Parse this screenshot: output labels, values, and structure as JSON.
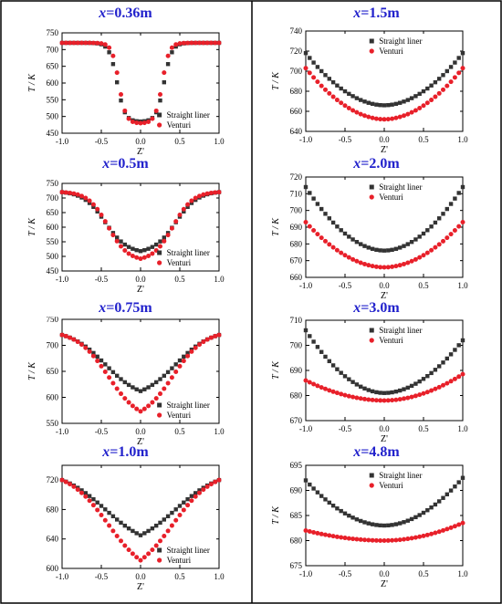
{
  "figure": {
    "border_color": "#000000",
    "title_color": "#2222cc",
    "straight_color": "#333333",
    "venturi_color": "#e8202a"
  },
  "chart_data": [
    {
      "type": "scatter",
      "title_var": "x",
      "title_value": "=0.36m",
      "xlabel": "Z'",
      "ylabel": "T / K",
      "xlim": [
        -1.0,
        1.0
      ],
      "ylim": [
        450,
        750
      ],
      "xticks": [
        "-1.0",
        "-0.5",
        "0.0",
        "0.5",
        "1.0"
      ],
      "yticks": [
        "450",
        "500",
        "550",
        "600",
        "650",
        "700",
        "750"
      ],
      "legend": [
        "Straight liner",
        "Venturi"
      ],
      "legend_position": "bottom-right",
      "profile": {
        "base": 720,
        "min_straight": 485,
        "min_venturi": 480,
        "shape": "step",
        "half_width": 0.3,
        "edge": 0.05
      }
    },
    {
      "type": "scatter",
      "title_var": "x",
      "title_value": "=0.5m",
      "xlabel": "Z'",
      "ylabel": "T / K",
      "xlim": [
        -1.0,
        1.0
      ],
      "ylim": [
        450,
        750
      ],
      "xticks": [
        "-1.0",
        "-0.5",
        "0.0",
        "0.5",
        "1.0"
      ],
      "yticks": [
        "450",
        "500",
        "550",
        "600",
        "650",
        "700",
        "750"
      ],
      "legend": [
        "Straight liner",
        "Venturi"
      ],
      "legend_position": "bottom-right",
      "profile": {
        "base": 720,
        "min_straight": 518,
        "min_venturi": 492,
        "shape": "step",
        "half_width": 0.45,
        "edge": 0.14
      }
    },
    {
      "type": "scatter",
      "title_var": "x",
      "title_value": "=0.75m",
      "xlabel": "Z'",
      "ylabel": "T / K",
      "xlim": [
        -1.0,
        1.0
      ],
      "ylim": [
        550,
        750
      ],
      "xticks": [
        "-1.0",
        "-0.5",
        "0.0",
        "0.5",
        "1.0"
      ],
      "yticks": [
        "550",
        "600",
        "650",
        "700",
        "750"
      ],
      "legend": [
        "Straight liner",
        "Venturi"
      ],
      "legend_position": "bottom-right",
      "profile": {
        "base": 720,
        "min_straight": 612,
        "min_venturi": 573,
        "shape": "step",
        "half_width": 0.45,
        "edge": 0.22
      }
    },
    {
      "type": "scatter",
      "title_var": "x",
      "title_value": "=1.0m",
      "xlabel": "Z'",
      "ylabel": "",
      "xlim": [
        -1.0,
        1.0
      ],
      "ylim": [
        600,
        740
      ],
      "xticks": [
        "-1.0",
        "-0.5",
        "0.0",
        "0.5",
        "1.0"
      ],
      "yticks": [
        "600",
        "640",
        "680",
        "720"
      ],
      "legend": [
        "Straight liner",
        "Venturi"
      ],
      "legend_position": "bottom-right",
      "profile": {
        "base": 720,
        "min_straight": 645,
        "min_venturi": 611,
        "shape": "step",
        "half_width": 0.45,
        "edge": 0.28
      }
    },
    {
      "type": "scatter",
      "title_var": "x",
      "title_value": "=1.5m",
      "xlabel": "Z'",
      "ylabel": "T / K",
      "xlim": [
        -1.0,
        1.0
      ],
      "ylim": [
        640,
        740
      ],
      "xticks": [
        "-1.0",
        "-0.5",
        "0.0",
        "0.5",
        "1.0"
      ],
      "yticks": [
        "640",
        "660",
        "680",
        "700",
        "720",
        "740"
      ],
      "legend": [
        "Straight liner",
        "Venturi"
      ],
      "legend_position": "top-right",
      "profile": {
        "base_straight": 718,
        "base_venturi": 703,
        "min_straight": 666,
        "min_venturi": 652,
        "shape": "parabola"
      }
    },
    {
      "type": "scatter",
      "title_var": "x",
      "title_value": "=2.0m",
      "xlabel": "Z'",
      "ylabel": "T / K",
      "xlim": [
        -1.0,
        1.0
      ],
      "ylim": [
        660,
        720
      ],
      "xticks": [
        "-1.0",
        "-0.5",
        "0.0",
        "0.5",
        "1.0"
      ],
      "yticks": [
        "660",
        "670",
        "680",
        "690",
        "700",
        "710",
        "720"
      ],
      "legend": [
        "Straight liner",
        "Venturi"
      ],
      "legend_position": "top-right",
      "profile": {
        "base_straight": 714,
        "base_venturi": 693,
        "min_straight": 676,
        "min_venturi": 666,
        "shape": "parabola"
      }
    },
    {
      "type": "scatter",
      "title_var": "x",
      "title_value": "=3.0m",
      "xlabel": "Z'",
      "ylabel": "T / K",
      "xlim": [
        -1.0,
        1.0
      ],
      "ylim": [
        670,
        710
      ],
      "xticks": [
        "-1.0",
        "-0.5",
        "0.0",
        "0.5",
        "1.0"
      ],
      "yticks": [
        "670",
        "680",
        "690",
        "700",
        "710"
      ],
      "legend": [
        "Straight liner",
        "Venturi"
      ],
      "legend_position": "top-right",
      "profile": {
        "base_straight": 706,
        "base_end_straight": 702,
        "base_venturi": 686,
        "base_end_venturi": 688.5,
        "min_straight": 681,
        "min_venturi": 678,
        "shape": "parabola"
      }
    },
    {
      "type": "scatter",
      "title_var": "x",
      "title_value": "=4.8m",
      "xlabel": "Z'",
      "ylabel": "T / K",
      "xlim": [
        -1.0,
        1.0
      ],
      "ylim": [
        675,
        695
      ],
      "xticks": [
        "-1.0",
        "-0.5",
        "0.0",
        "0.5",
        "1.0"
      ],
      "yticks": [
        "675",
        "680",
        "685",
        "690",
        "695"
      ],
      "legend": [
        "Straight liner",
        "Venturi"
      ],
      "legend_position": "top-right",
      "profile": {
        "base_straight": 692,
        "base_end_straight": 692.5,
        "base_venturi": 682,
        "base_end_venturi": 683.5,
        "min_straight": 683,
        "min_venturi": 680,
        "shape": "parabola"
      }
    }
  ]
}
